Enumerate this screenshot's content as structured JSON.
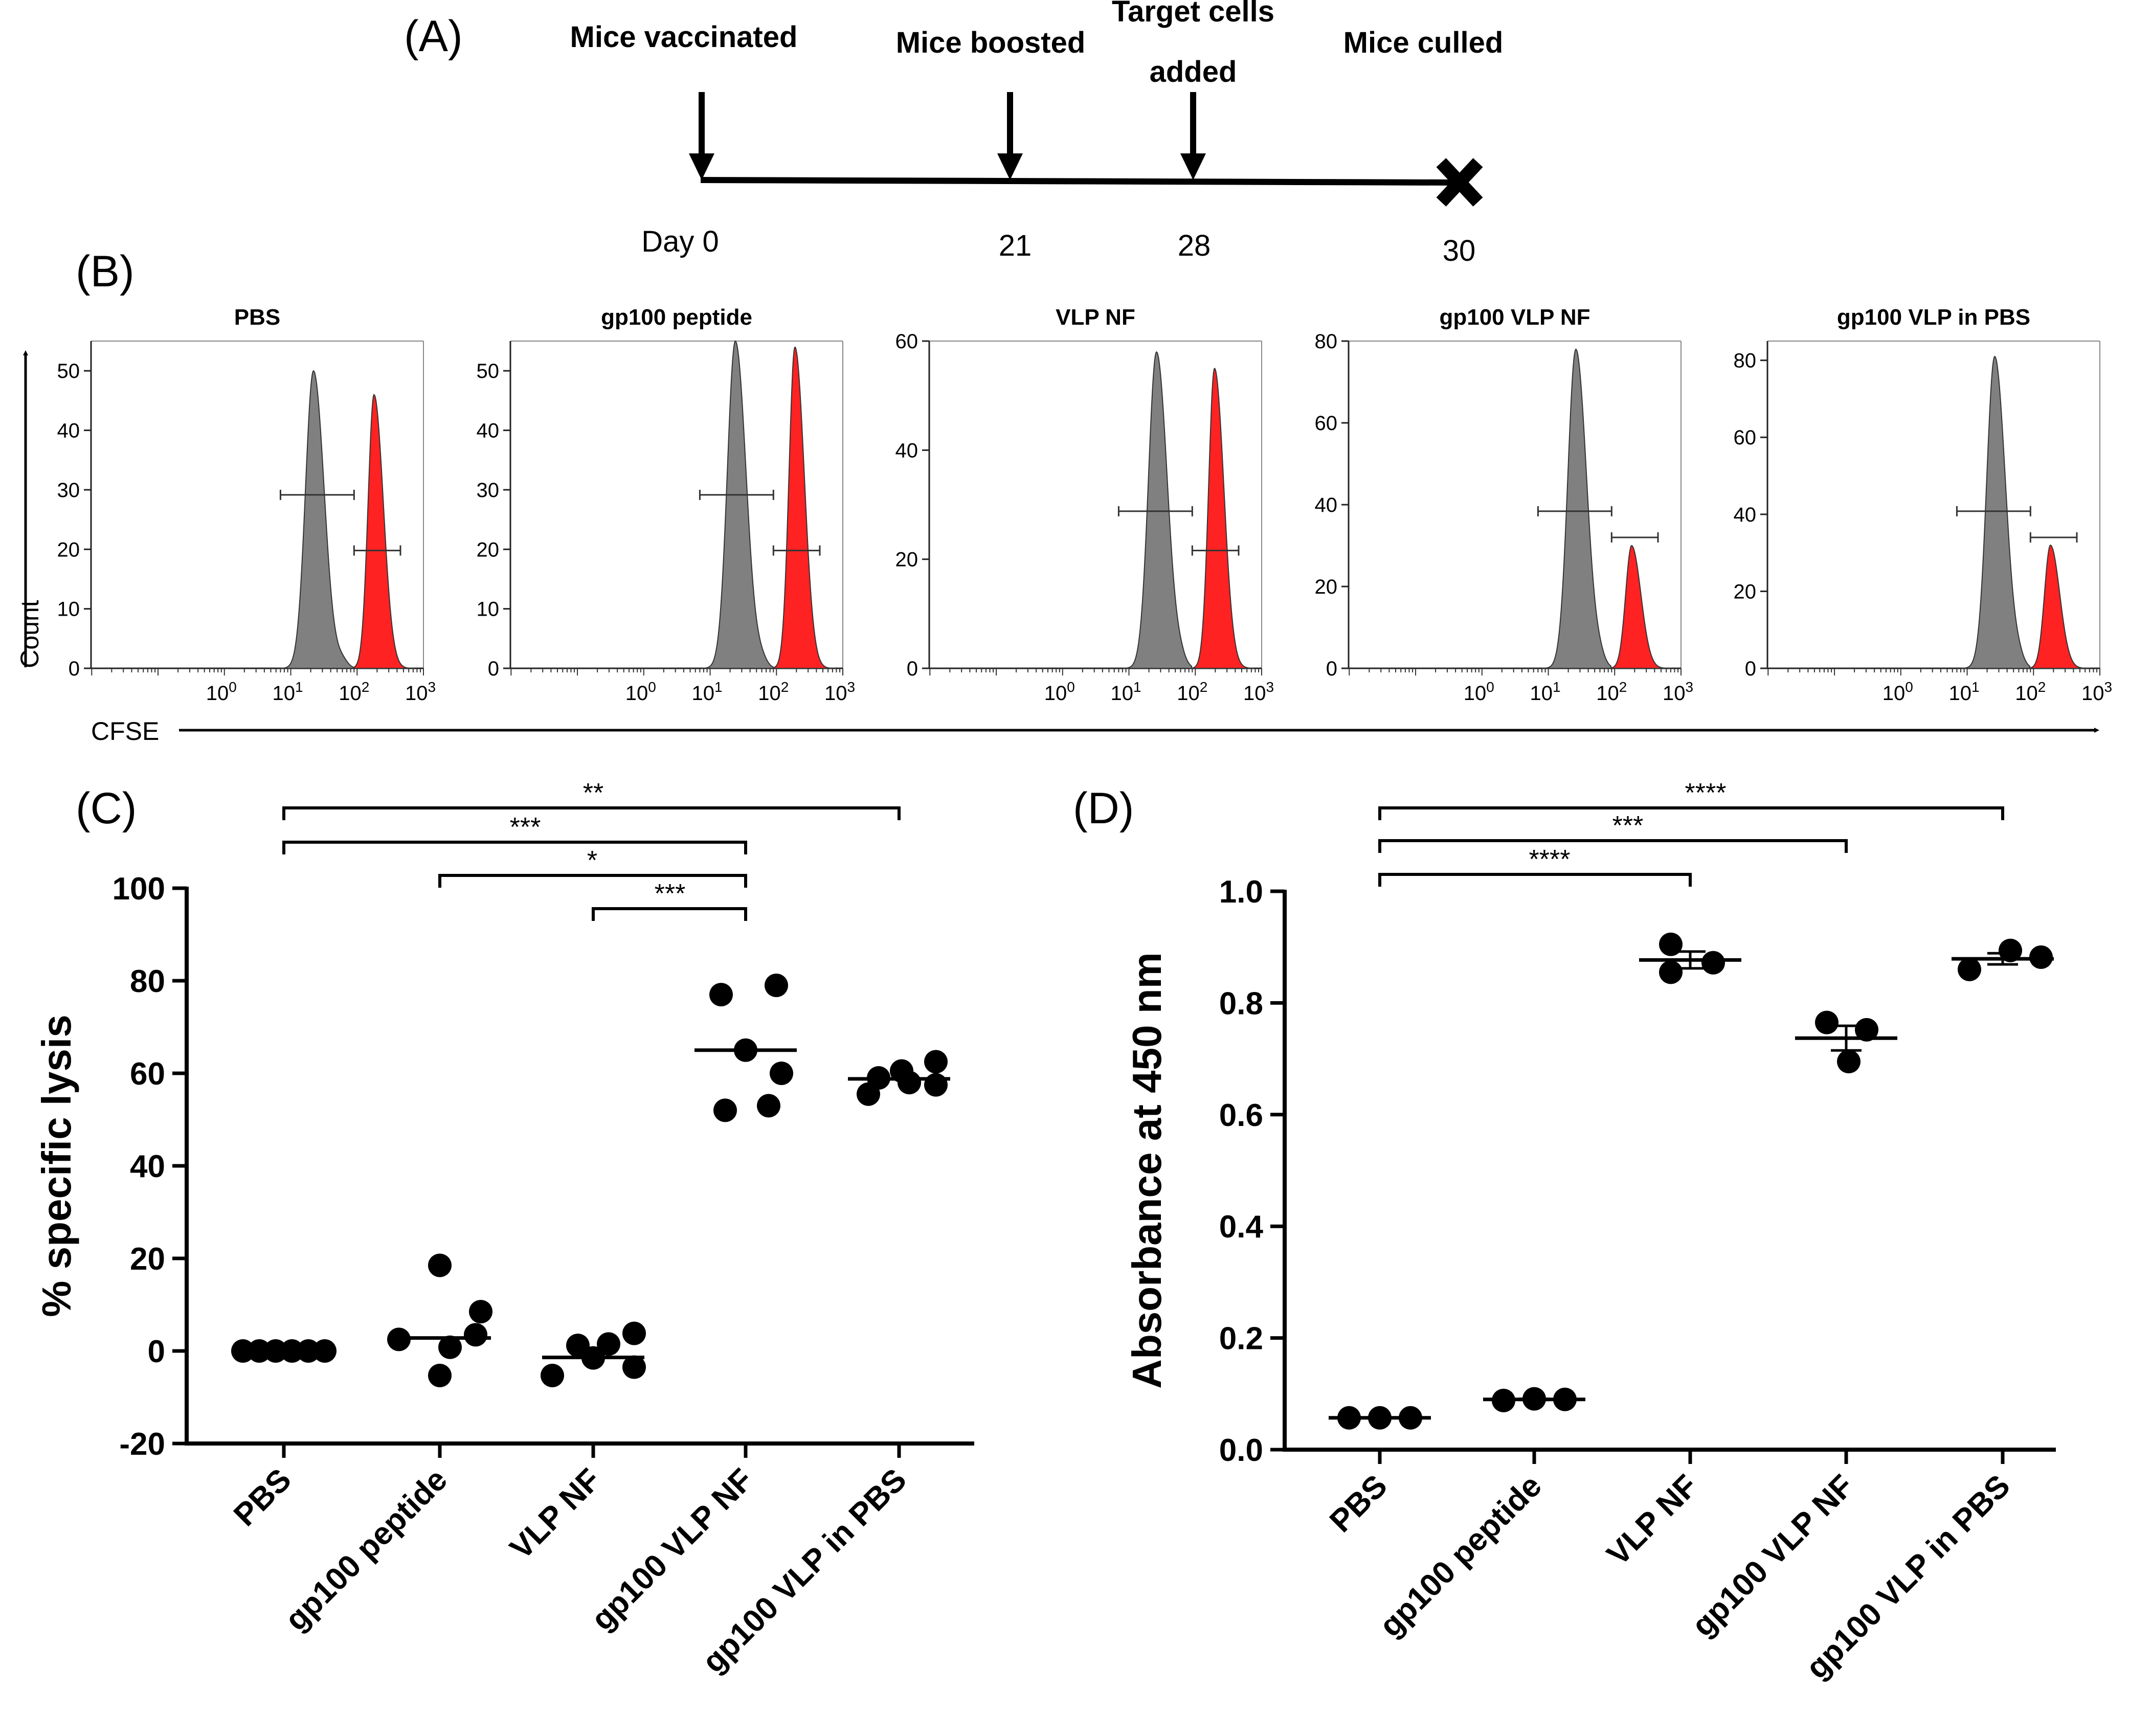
{
  "panel_labels": {
    "a": "(A)",
    "b": "(B)",
    "c": "(C)",
    "d": "(D)"
  },
  "timeline": {
    "events": [
      "Mice vaccinated",
      "Mice boosted",
      "Target cells",
      "added",
      "Mice culled"
    ],
    "days": [
      "Day 0",
      "21",
      "28",
      "30"
    ]
  },
  "chart_data": [
    {
      "type": "histogram",
      "panel": "B",
      "xlabel": "CFSE",
      "ylabel": "Count",
      "x_scale": "log",
      "x_ticks": [
        "10^0",
        "10^1",
        "10^2",
        "10^3"
      ],
      "histograms": [
        {
          "title": "PBS",
          "ylim": [
            0,
            55
          ],
          "yticks": [
            0,
            10,
            20,
            30,
            40,
            50
          ],
          "peaks": [
            {
              "population": "unpulsed (grey)",
              "center": 22,
              "height": 50
            },
            {
              "population": "gp100-pulsed (red)",
              "center": 180,
              "height": 46
            }
          ]
        },
        {
          "title": "gp100 peptide",
          "ylim": [
            0,
            55
          ],
          "yticks": [
            0,
            10,
            20,
            30,
            40,
            50
          ],
          "peaks": [
            {
              "population": "unpulsed (grey)",
              "center": 24,
              "height": 55
            },
            {
              "population": "gp100-pulsed (red)",
              "center": 190,
              "height": 54
            }
          ]
        },
        {
          "title": "VLP NF",
          "ylim": [
            0,
            60
          ],
          "yticks": [
            0,
            20,
            40,
            60
          ],
          "peaks": [
            {
              "population": "unpulsed (grey)",
              "center": 26,
              "height": 58
            },
            {
              "population": "gp100-pulsed (red)",
              "center": 195,
              "height": 55
            }
          ]
        },
        {
          "title": "gp100 VLP NF",
          "ylim": [
            0,
            80
          ],
          "yticks": [
            0,
            20,
            40,
            60,
            80
          ],
          "peaks": [
            {
              "population": "unpulsed (grey)",
              "center": 26,
              "height": 78
            },
            {
              "population": "gp100-pulsed (red)",
              "center": 180,
              "height": 30
            }
          ]
        },
        {
          "title": "gp100 VLP in PBS",
          "ylim": [
            0,
            85
          ],
          "yticks": [
            0,
            20,
            40,
            60,
            80
          ],
          "peaks": [
            {
              "population": "unpulsed (grey)",
              "center": 26,
              "height": 81
            },
            {
              "population": "gp100-pulsed (red)",
              "center": 180,
              "height": 32
            }
          ]
        }
      ]
    },
    {
      "type": "scatter",
      "panel": "C",
      "ylabel": "% specific lysis",
      "ylim": [
        -20,
        100
      ],
      "yticks": [
        -20,
        0,
        20,
        40,
        60,
        80,
        100
      ],
      "categories": [
        "PBS",
        "gp100 peptide",
        "VLP NF",
        "gp100 VLP NF",
        "gp100 VLP in PBS"
      ],
      "points": [
        [
          0,
          0,
          0,
          0,
          0,
          0
        ],
        [
          18.5,
          8.5,
          3.5,
          2.5,
          -5.3,
          0.8
        ],
        [
          3.8,
          1.5,
          1.2,
          -1.5,
          -5.3,
          -3.5
        ],
        [
          79,
          77,
          65,
          60,
          53,
          52
        ],
        [
          62.5,
          60.5,
          59,
          58,
          57.5,
          55.5
        ]
      ],
      "means": [
        0,
        2.8,
        -1.4,
        65,
        58.8
      ],
      "significance": [
        {
          "label": "**",
          "from": "PBS",
          "to": "gp100 VLP in PBS"
        },
        {
          "label": "***",
          "from": "PBS",
          "to": "gp100 VLP NF"
        },
        {
          "label": "*",
          "from": "gp100 peptide",
          "to": "gp100 VLP NF"
        },
        {
          "label": "***",
          "from": "VLP NF",
          "to": "gp100 VLP NF"
        }
      ]
    },
    {
      "type": "scatter",
      "panel": "D",
      "ylabel": "Absorbance at 450 nm",
      "ylim": [
        0,
        1.0
      ],
      "yticks": [
        0.0,
        0.2,
        0.4,
        0.6,
        0.8,
        1.0
      ],
      "ytick_labels": [
        "0.0",
        "0.2",
        "0.4",
        "0.6",
        "0.8",
        "1.0"
      ],
      "categories": [
        "PBS",
        "gp100 peptide",
        "VLP NF",
        "gp100 VLP NF",
        "gp100 VLP in PBS"
      ],
      "points": [
        [
          0.057,
          0.057,
          0.057
        ],
        [
          0.088,
          0.091,
          0.09
        ],
        [
          0.905,
          0.855,
          0.872
        ],
        [
          0.765,
          0.752,
          0.695
        ],
        [
          0.86,
          0.894,
          0.882
        ]
      ],
      "means": [
        0.057,
        0.09,
        0.877,
        0.737,
        0.879
      ],
      "sem": [
        0.0,
        0.001,
        0.015,
        0.022,
        0.01
      ],
      "significance": [
        {
          "label": "****",
          "from": "PBS",
          "to": "gp100 VLP in PBS"
        },
        {
          "label": "***",
          "from": "PBS",
          "to": "gp100 VLP NF"
        },
        {
          "label": "****",
          "from": "PBS",
          "to": "VLP NF"
        }
      ]
    }
  ]
}
